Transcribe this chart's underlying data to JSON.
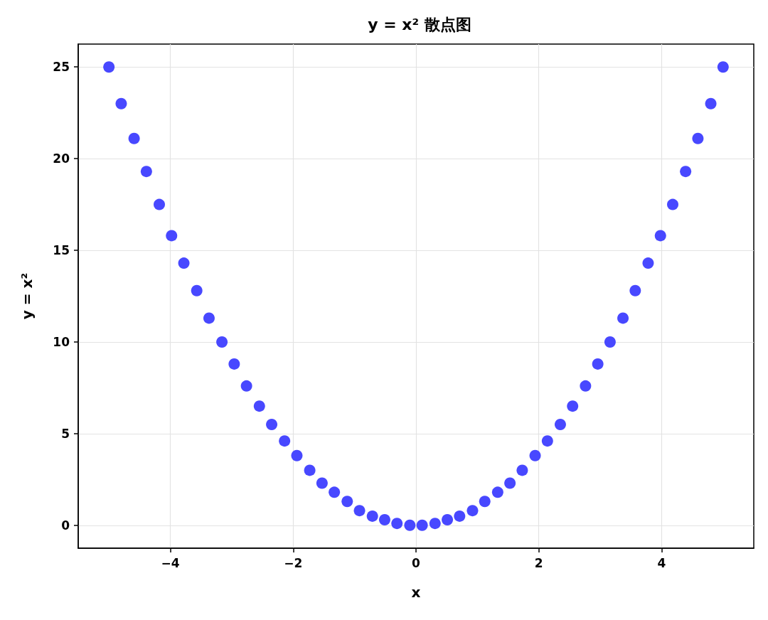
{
  "chart_data": {
    "type": "scatter",
    "title": "y = x² 散点图",
    "xlabel": "x",
    "ylabel": "y = x²",
    "x": [
      -5.0,
      -4.8,
      -4.59,
      -4.39,
      -4.18,
      -3.98,
      -3.78,
      -3.57,
      -3.37,
      -3.16,
      -2.96,
      -2.76,
      -2.55,
      -2.35,
      -2.14,
      -1.94,
      -1.73,
      -1.53,
      -1.33,
      -1.12,
      -0.92,
      -0.71,
      -0.51,
      -0.31,
      -0.1,
      0.1,
      0.31,
      0.51,
      0.71,
      0.92,
      1.12,
      1.33,
      1.53,
      1.73,
      1.94,
      2.14,
      2.35,
      2.55,
      2.76,
      2.96,
      3.16,
      3.37,
      3.57,
      3.78,
      3.98,
      4.18,
      4.39,
      4.59,
      4.8,
      5.0
    ],
    "series": [
      {
        "color": "#4848ff",
        "values": [
          25.0,
          23.0,
          21.1,
          19.3,
          17.5,
          15.8,
          14.3,
          12.8,
          11.3,
          10.0,
          8.8,
          7.6,
          6.5,
          5.5,
          4.6,
          3.8,
          3.0,
          2.3,
          1.8,
          1.3,
          0.8,
          0.5,
          0.3,
          0.1,
          0.0,
          0.0,
          0.1,
          0.3,
          0.5,
          0.8,
          1.3,
          1.8,
          2.3,
          3.0,
          3.8,
          4.6,
          5.5,
          6.5,
          7.6,
          8.8,
          10.0,
          11.3,
          12.8,
          14.3,
          15.8,
          17.5,
          19.3,
          21.1,
          23.0,
          25.0
        ]
      }
    ],
    "xlim": [
      -5.5,
      5.5
    ],
    "xticks": [
      {
        "value": -4,
        "label": "−4"
      },
      {
        "value": -2,
        "label": "−2"
      },
      0,
      2,
      4
    ],
    "ylim": [
      -1.25,
      26.25
    ],
    "yticks": [
      0,
      5,
      10,
      15,
      20,
      25
    ],
    "grid": true,
    "marker": "circle"
  }
}
